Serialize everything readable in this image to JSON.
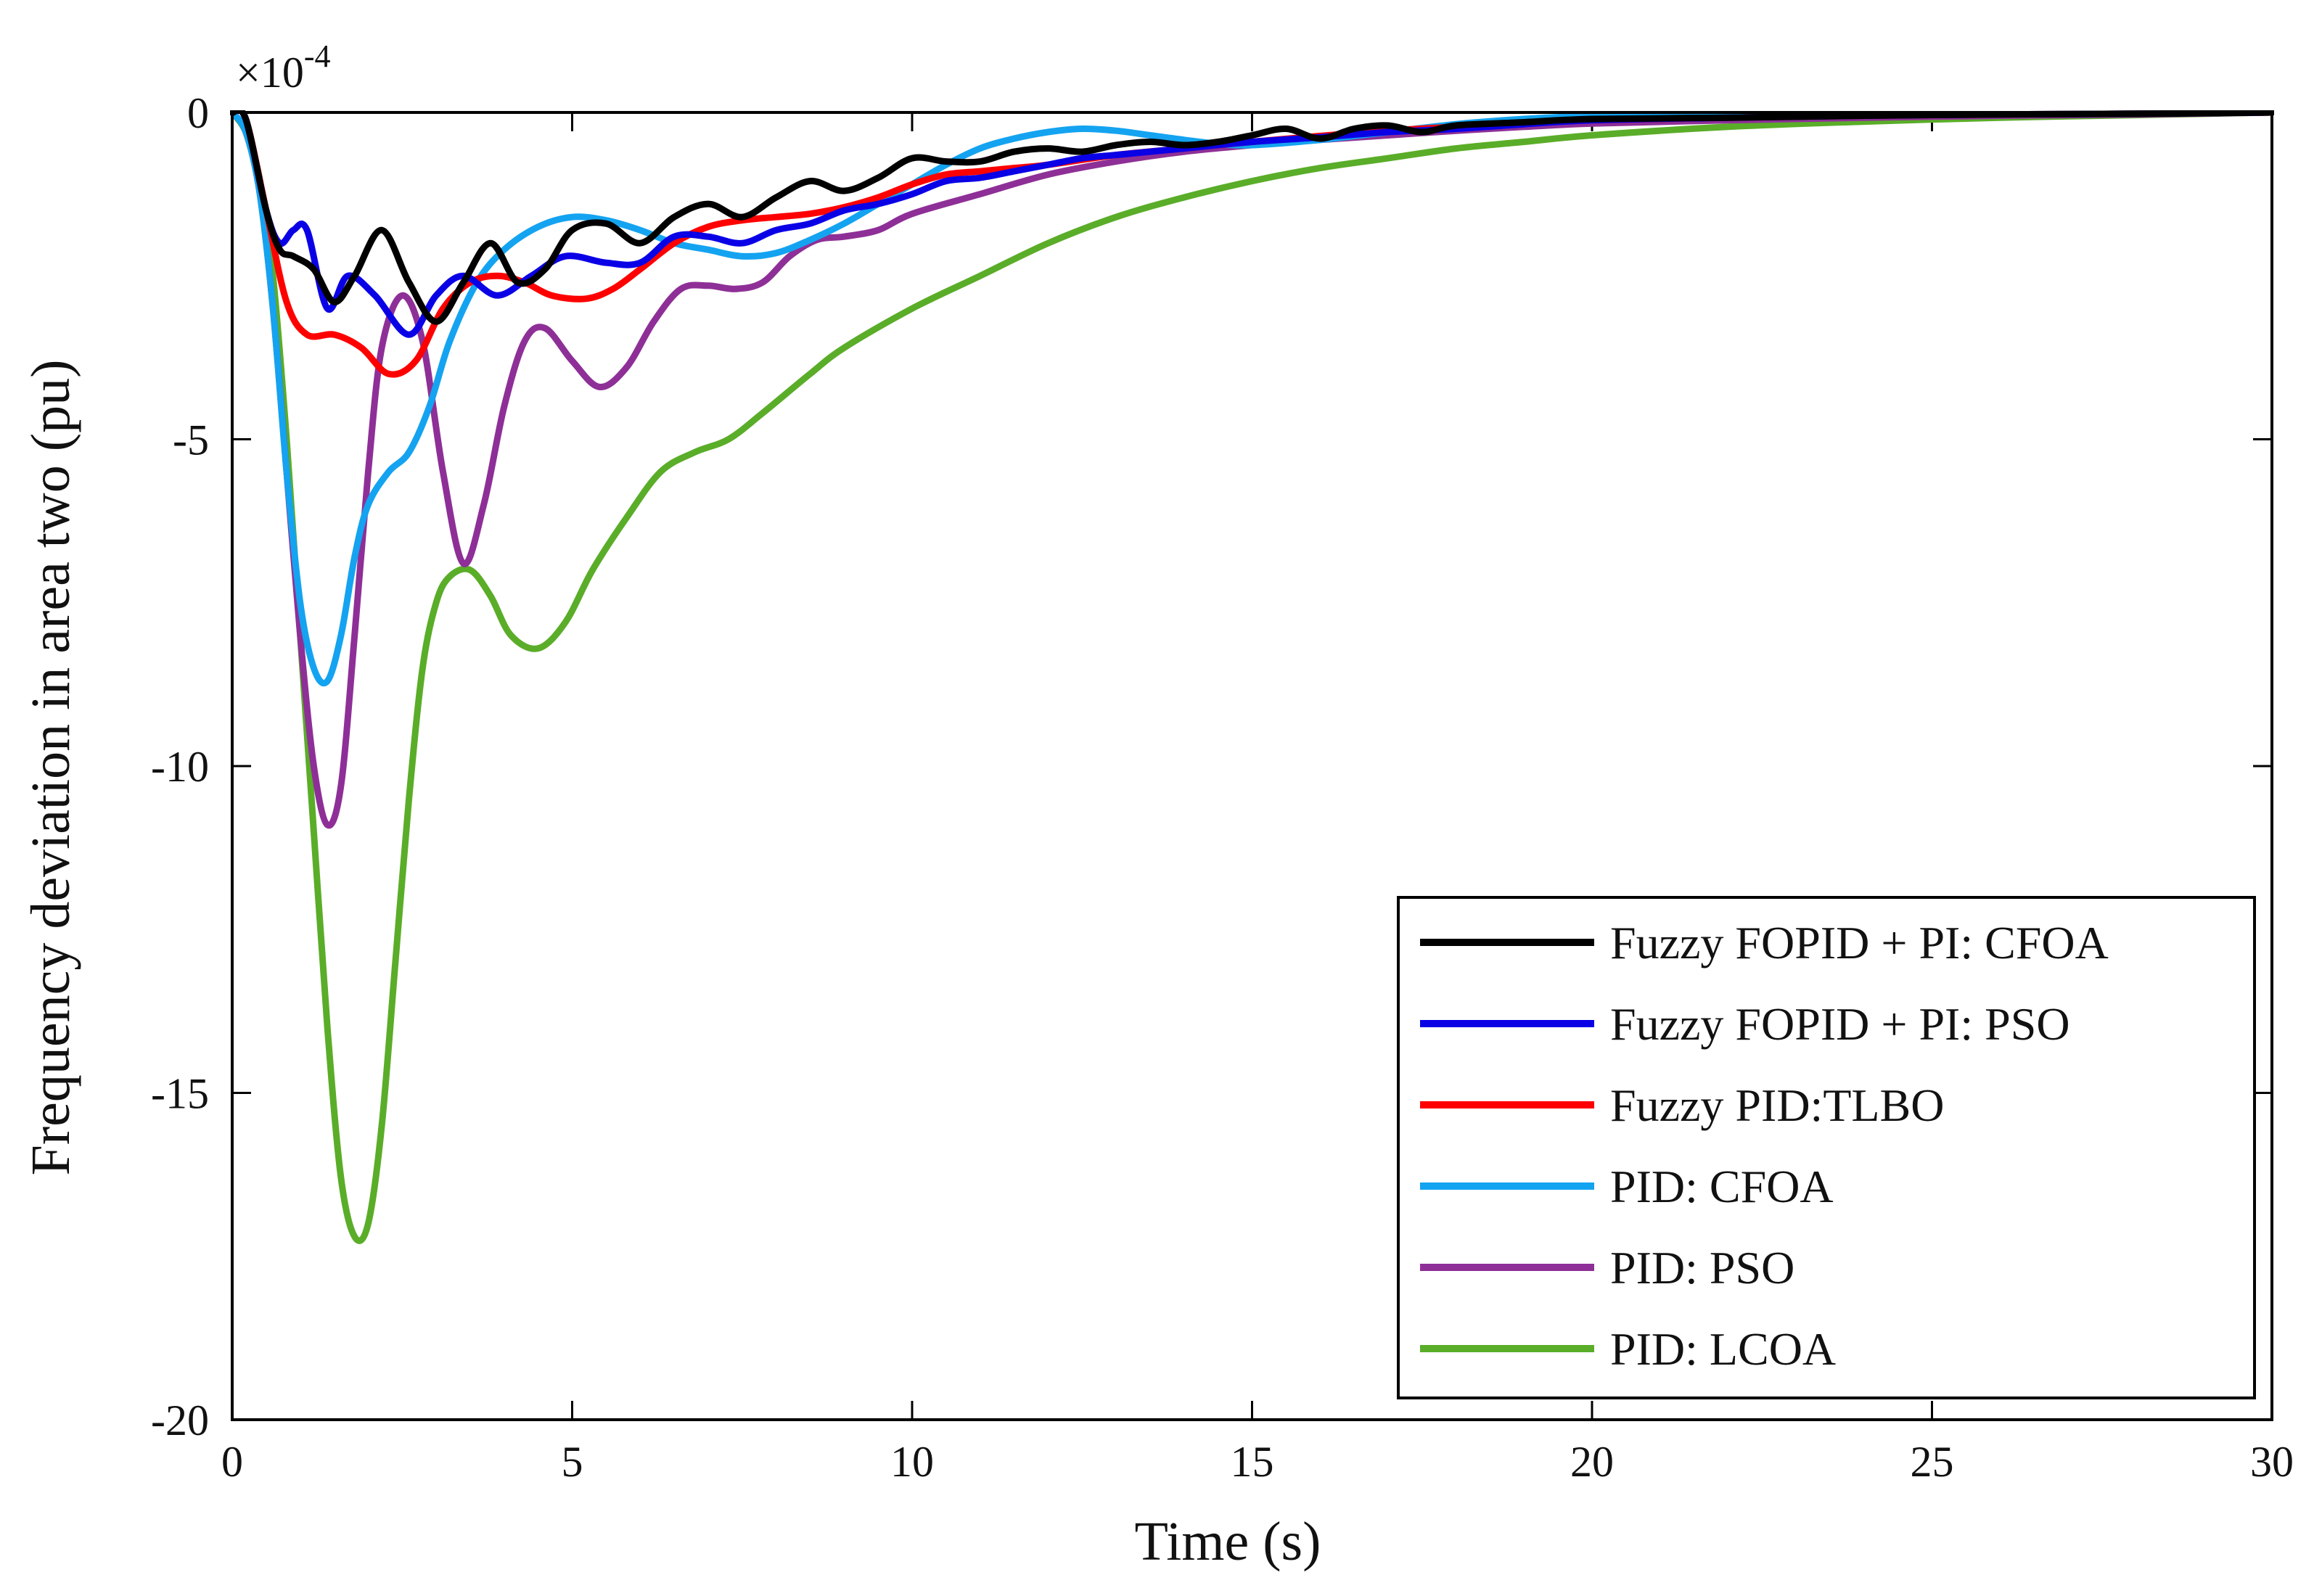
{
  "chart_data": {
    "type": "line",
    "title": "",
    "xlabel": "Time (s)",
    "ylabel": "Frequency deviation in area two (pu)",
    "exponent_base": "×10",
    "exponent_power": "-4",
    "xlim": [
      0,
      30
    ],
    "ylim": [
      -20,
      0
    ],
    "xticks": [
      0,
      5,
      10,
      15,
      20,
      25,
      30
    ],
    "yticks": [
      0,
      -5,
      -10,
      -15,
      -20
    ],
    "grid": false,
    "legend_position": "bottom-right",
    "series": [
      {
        "name": "Fuzzy FOPID + PI: CFOA",
        "color": "#000000",
        "x": [
          0,
          0.2,
          0.5,
          0.7,
          0.9,
          1.2,
          1.5,
          1.8,
          2.2,
          2.6,
          3.0,
          3.4,
          3.8,
          4.2,
          4.6,
          5.0,
          5.5,
          6.0,
          6.5,
          7.0,
          7.5,
          8.0,
          8.5,
          9.0,
          9.5,
          10.0,
          10.5,
          11.0,
          11.5,
          12.0,
          12.5,
          13.0,
          13.5,
          14.0,
          14.5,
          15.0,
          15.5,
          16.0,
          16.5,
          17.0,
          17.5,
          18.0,
          19.0,
          20.0,
          22.0,
          24.0,
          26.0,
          28.0,
          30.0
        ],
        "y": [
          0,
          -0.1,
          -1.5,
          -2.1,
          -2.2,
          -2.4,
          -2.9,
          -2.5,
          -1.8,
          -2.6,
          -3.2,
          -2.6,
          -2.0,
          -2.6,
          -2.4,
          -1.8,
          -1.7,
          -2.0,
          -1.6,
          -1.4,
          -1.6,
          -1.3,
          -1.05,
          -1.2,
          -1.0,
          -0.7,
          -0.75,
          -0.75,
          -0.6,
          -0.55,
          -0.6,
          -0.5,
          -0.45,
          -0.5,
          -0.45,
          -0.35,
          -0.25,
          -0.4,
          -0.25,
          -0.2,
          -0.3,
          -0.2,
          -0.15,
          -0.1,
          -0.08,
          -0.05,
          -0.03,
          -0.02,
          0
        ]
      },
      {
        "name": "Fuzzy FOPID + PI: PSO",
        "color": "#0a00e6",
        "x": [
          0,
          0.2,
          0.5,
          0.7,
          0.9,
          1.1,
          1.4,
          1.7,
          2.1,
          2.6,
          3.0,
          3.4,
          3.9,
          4.4,
          4.9,
          5.5,
          6.0,
          6.5,
          7.0,
          7.5,
          8.0,
          8.5,
          9.0,
          9.5,
          10.0,
          10.5,
          11.0,
          11.5,
          12.0,
          12.5,
          13.0,
          14.0,
          15.0,
          16.0,
          17.0,
          18.0,
          19.0,
          20.0,
          22.0,
          24.0,
          26.0,
          28.0,
          30.0
        ],
        "y": [
          0,
          -0.1,
          -1.5,
          -2.0,
          -1.8,
          -1.8,
          -3.0,
          -2.5,
          -2.8,
          -3.4,
          -2.8,
          -2.5,
          -2.8,
          -2.5,
          -2.2,
          -2.3,
          -2.3,
          -1.9,
          -1.9,
          -2.0,
          -1.8,
          -1.7,
          -1.5,
          -1.4,
          -1.25,
          -1.05,
          -1.0,
          -0.9,
          -0.8,
          -0.7,
          -0.65,
          -0.55,
          -0.45,
          -0.38,
          -0.3,
          -0.25,
          -0.18,
          -0.12,
          -0.08,
          -0.05,
          -0.03,
          -0.02,
          0
        ]
      },
      {
        "name": "Fuzzy PID:TLBO",
        "color": "#ff0000",
        "x": [
          0,
          0.2,
          0.5,
          0.8,
          1.1,
          1.5,
          1.9,
          2.3,
          2.7,
          3.1,
          3.5,
          3.9,
          4.3,
          4.7,
          5.2,
          5.6,
          6.0,
          6.5,
          7.0,
          7.5,
          8.0,
          8.5,
          9.0,
          9.5,
          10.0,
          10.5,
          11.0,
          11.5,
          12.0,
          13.0,
          14.0,
          15.0,
          16.0,
          17.0,
          18.0,
          19.0,
          20.0,
          22.0,
          24.0,
          26.0,
          28.0,
          30.0
        ],
        "y": [
          0,
          -0.1,
          -1.5,
          -2.9,
          -3.4,
          -3.4,
          -3.6,
          -4.0,
          -3.8,
          -3.0,
          -2.6,
          -2.5,
          -2.6,
          -2.8,
          -2.85,
          -2.7,
          -2.4,
          -2.0,
          -1.75,
          -1.65,
          -1.6,
          -1.55,
          -1.45,
          -1.3,
          -1.1,
          -0.95,
          -0.9,
          -0.85,
          -0.8,
          -0.65,
          -0.55,
          -0.45,
          -0.36,
          -0.28,
          -0.22,
          -0.16,
          -0.12,
          -0.08,
          -0.05,
          -0.03,
          -0.02,
          0
        ]
      },
      {
        "name": "PID: CFOA",
        "color": "#14a3f0",
        "x": [
          0,
          0.2,
          0.4,
          0.6,
          0.8,
          1.0,
          1.2,
          1.4,
          1.6,
          1.8,
          2.0,
          2.3,
          2.6,
          2.9,
          3.2,
          3.6,
          4.0,
          4.5,
          5.0,
          5.5,
          6.0,
          6.5,
          7.0,
          7.5,
          8.0,
          8.5,
          9.0,
          9.5,
          10.0,
          10.5,
          11.0,
          11.5,
          12.0,
          12.5,
          13.0,
          13.5,
          14.0,
          14.5,
          15.0,
          16.0,
          17.0,
          18.0,
          19.0,
          20.0,
          22.0,
          24.0,
          26.0,
          28.0,
          30.0
        ],
        "y": [
          0,
          -0.3,
          -1.2,
          -3.0,
          -5.5,
          -7.5,
          -8.5,
          -8.7,
          -8.0,
          -6.8,
          -6.0,
          -5.5,
          -5.2,
          -4.5,
          -3.5,
          -2.6,
          -2.1,
          -1.75,
          -1.6,
          -1.65,
          -1.8,
          -2.0,
          -2.1,
          -2.2,
          -2.15,
          -1.95,
          -1.7,
          -1.4,
          -1.1,
          -0.8,
          -0.55,
          -0.4,
          -0.3,
          -0.25,
          -0.28,
          -0.35,
          -0.42,
          -0.48,
          -0.5,
          -0.42,
          -0.3,
          -0.18,
          -0.1,
          -0.06,
          -0.05,
          -0.04,
          -0.03,
          -0.02,
          0
        ]
      },
      {
        "name": "PID: PSO",
        "color": "#8e2f97",
        "x": [
          0,
          0.2,
          0.4,
          0.6,
          0.8,
          1.0,
          1.2,
          1.4,
          1.6,
          1.8,
          2.0,
          2.2,
          2.5,
          2.8,
          3.1,
          3.4,
          3.7,
          4.0,
          4.3,
          4.6,
          5.0,
          5.4,
          5.8,
          6.2,
          6.6,
          7.0,
          7.4,
          7.8,
          8.2,
          8.6,
          9.0,
          9.5,
          10.0,
          11.0,
          12.0,
          13.0,
          14.0,
          15.0,
          16.0,
          17.0,
          18.0,
          19.0,
          20.0,
          22.0,
          24.0,
          26.0,
          28.0,
          30.0
        ],
        "y": [
          0,
          -0.3,
          -1.2,
          -3.0,
          -5.5,
          -8.0,
          -10.0,
          -10.9,
          -10.3,
          -8.0,
          -5.5,
          -3.6,
          -2.8,
          -3.5,
          -5.5,
          -6.9,
          -6.0,
          -4.5,
          -3.5,
          -3.3,
          -3.8,
          -4.2,
          -3.9,
          -3.2,
          -2.7,
          -2.65,
          -2.7,
          -2.6,
          -2.2,
          -1.95,
          -1.9,
          -1.8,
          -1.55,
          -1.25,
          -0.95,
          -0.75,
          -0.6,
          -0.5,
          -0.42,
          -0.35,
          -0.28,
          -0.22,
          -0.17,
          -0.12,
          -0.08,
          -0.05,
          -0.03,
          0
        ]
      },
      {
        "name": "PID: LCOA",
        "color": "#5aad28",
        "x": [
          0,
          0.2,
          0.4,
          0.6,
          0.8,
          1.0,
          1.2,
          1.4,
          1.6,
          1.8,
          2.0,
          2.2,
          2.4,
          2.6,
          2.8,
          3.0,
          3.2,
          3.5,
          3.8,
          4.1,
          4.5,
          4.9,
          5.3,
          5.8,
          6.3,
          6.8,
          7.3,
          7.8,
          8.5,
          9.0,
          10.0,
          11.0,
          12.0,
          13.0,
          14.0,
          15.0,
          16.0,
          17.0,
          18.0,
          19.0,
          20.0,
          22.0,
          24.0,
          26.0,
          28.0,
          30.0
        ],
        "y": [
          0,
          -0.3,
          -1.0,
          -2.5,
          -5.0,
          -8.0,
          -11.0,
          -14.0,
          -16.3,
          -17.2,
          -17.0,
          -15.5,
          -13.0,
          -10.5,
          -8.5,
          -7.5,
          -7.1,
          -7.0,
          -7.4,
          -8.0,
          -8.2,
          -7.8,
          -7.0,
          -6.2,
          -5.5,
          -5.2,
          -5.0,
          -4.6,
          -4.0,
          -3.6,
          -3.0,
          -2.5,
          -2.0,
          -1.6,
          -1.3,
          -1.05,
          -0.85,
          -0.7,
          -0.55,
          -0.45,
          -0.35,
          -0.22,
          -0.14,
          -0.08,
          -0.04,
          0
        ]
      }
    ]
  }
}
